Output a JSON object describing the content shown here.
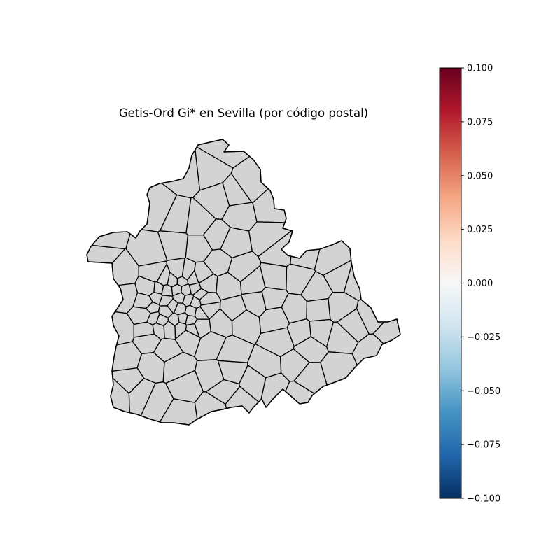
{
  "chart_data": {
    "type": "map",
    "title": "Getis-Ord Gi* en Sevilla (por código postal)",
    "region_fill": "#d3d3d3",
    "region_stroke": "#000000",
    "colorbar": {
      "colormap": "RdBu_r",
      "min": -0.1,
      "max": 0.1,
      "ticks": [
        0.1,
        0.075,
        0.05,
        0.025,
        0.0,
        -0.025,
        -0.05,
        -0.075,
        -0.1
      ],
      "tick_labels": [
        "0.100",
        "0.075",
        "0.050",
        "0.025",
        "0.000",
        "−0.025",
        "−0.050",
        "−0.075",
        "−0.100"
      ],
      "colors": [
        "#67001f",
        "#b2182b",
        "#d6604d",
        "#f4a582",
        "#fddbc7",
        "#f7f7f7",
        "#d1e5f0",
        "#92c5de",
        "#4393c3",
        "#2166ac",
        "#053061"
      ]
    }
  }
}
